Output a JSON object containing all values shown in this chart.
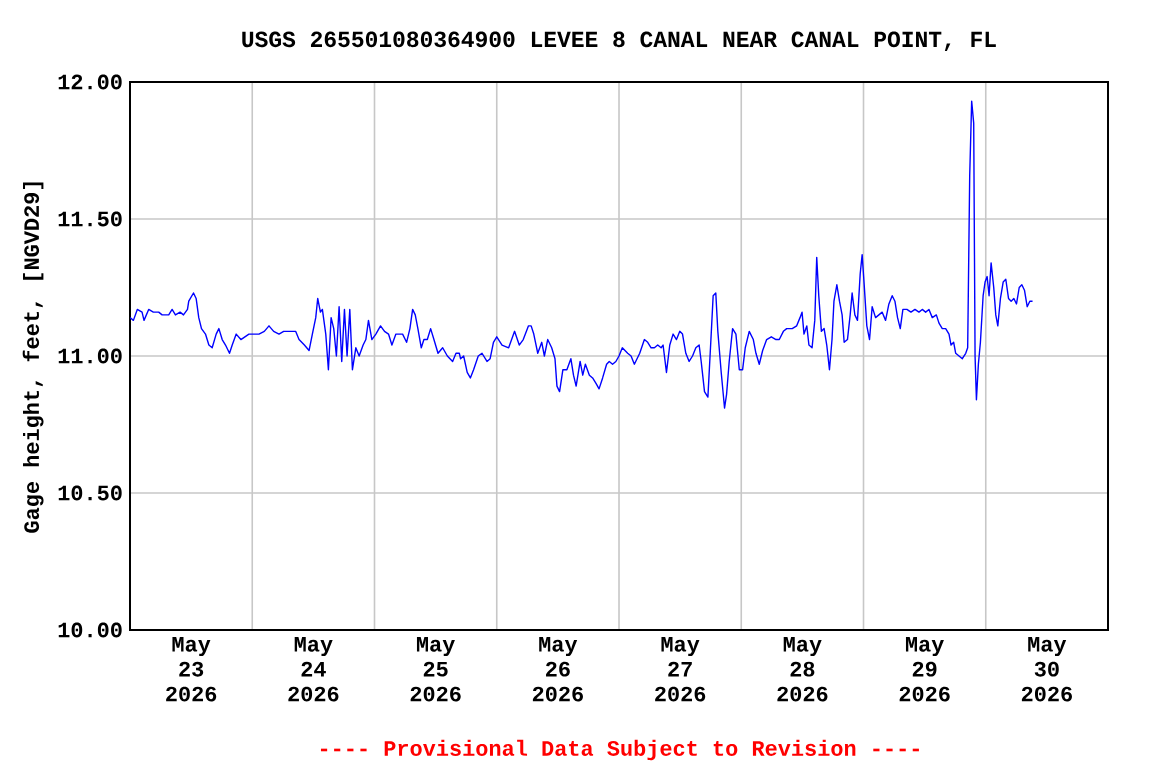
{
  "chart_data": {
    "type": "line",
    "title": "USGS 265501080364900 LEVEE 8 CANAL NEAR CANAL POINT, FL",
    "ylabel": "Gage height, feet, [NGVD29]",
    "annotations": [
      "---- Provisional Data Subject to Revision ----"
    ],
    "color": "#0000ff",
    "grid": true,
    "xlim": [
      "2026-05-23",
      "2026-05-31"
    ],
    "ylim": [
      10,
      12
    ],
    "yticks": [
      {
        "value": 10,
        "label": "10.00"
      },
      {
        "value": 10.5,
        "label": "10.50"
      },
      {
        "value": 11,
        "label": "11.00"
      },
      {
        "value": 11.5,
        "label": "11.50"
      },
      {
        "value": 12,
        "label": "12.00"
      }
    ],
    "xticks": [
      {
        "value": "2026-05-24",
        "label": null
      },
      {
        "value": "2026-05-25",
        "label": null
      },
      {
        "value": "2026-05-26",
        "label": null
      },
      {
        "value": "2026-05-27",
        "label": null
      },
      {
        "value": "2026-05-28",
        "label": null
      },
      {
        "value": "2026-05-29",
        "label": null
      },
      {
        "value": "2026-05-30",
        "label": null
      },
      {
        "value": "2026-05-23T12:00",
        "label": "May 23 2026"
      },
      {
        "value": "2026-05-24T12:00",
        "label": "May 24 2026"
      },
      {
        "value": "2026-05-25T12:00",
        "label": "May 25 2026"
      },
      {
        "value": "2026-05-26T12:00",
        "label": "May 26 2026"
      },
      {
        "value": "2026-05-27T12:00",
        "label": "May 27 2026"
      },
      {
        "value": "2026-05-28T12:00",
        "label": "May 28 2026"
      },
      {
        "value": "2026-05-29T12:00",
        "label": "May 29 2026"
      },
      {
        "value": "2026-05-30T12:00",
        "label": "May 30 2026"
      }
    ],
    "x": [
      "2026-05-23T00:00",
      "2026-05-23T00:40",
      "2026-05-23T01:26",
      "2026-05-23T02:22",
      "2026-05-23T02:45",
      "2026-05-23T03:40",
      "2026-05-23T04:35",
      "2026-05-23T05:38",
      "2026-05-23T06:18",
      "2026-05-23T07:36",
      "2026-05-23T08:16",
      "2026-05-23T08:55",
      "2026-05-23T09:50",
      "2026-05-23T10:30",
      "2026-05-23T11:17",
      "2026-05-23T11:32",
      "2026-05-23T12:28",
      "2026-05-23T12:59",
      "2026-05-23T13:30",
      "2026-05-23T14:02",
      "2026-05-23T14:49",
      "2026-05-23T15:29",
      "2026-05-23T16:08",
      "2026-05-23T16:55",
      "2026-05-23T17:27",
      "2026-05-23T18:06",
      "2026-05-23T18:45",
      "2026-05-23T19:32",
      "2026-05-23T20:04",
      "2026-05-23T20:51",
      "2026-05-23T21:46",
      "2026-05-23T23:21",
      "2026-05-24T01:19",
      "2026-05-24T02:22",
      "2026-05-24T03:17",
      "2026-05-24T04:12",
      "2026-05-24T05:15",
      "2026-05-24T06:10",
      "2026-05-24T07:52",
      "2026-05-24T08:31",
      "2026-05-24T09:11",
      "2026-05-24T10:14",
      "2026-05-24T11:09",
      "2026-05-24T11:48",
      "2026-05-24T12:28",
      "2026-05-24T12:51",
      "2026-05-24T13:23",
      "2026-05-24T13:46",
      "2026-05-24T14:26",
      "2026-05-24T14:57",
      "2026-05-24T15:29",
      "2026-05-24T16:00",
      "2026-05-24T16:31",
      "2026-05-24T17:03",
      "2026-05-24T17:34",
      "2026-05-24T18:06",
      "2026-05-24T18:37",
      "2026-05-24T19:09",
      "2026-05-24T19:40",
      "2026-05-24T20:20",
      "2026-05-24T20:59",
      "2026-05-24T21:46",
      "2026-05-24T22:18",
      "2026-05-24T22:49",
      "2026-05-24T23:29",
      "2026-05-25T00:16",
      "2026-05-25T01:11",
      "2026-05-25T01:58",
      "2026-05-25T02:45",
      "2026-05-25T03:25",
      "2026-05-25T04:12",
      "2026-05-25T05:31",
      "2026-05-25T06:18",
      "2026-05-25T06:57",
      "2026-05-25T07:29",
      "2026-05-25T08:00",
      "2026-05-25T08:31",
      "2026-05-25T09:11",
      "2026-05-25T09:42",
      "2026-05-25T10:22",
      "2026-05-25T11:01",
      "2026-05-25T11:40",
      "2026-05-25T12:28",
      "2026-05-25T13:23",
      "2026-05-25T14:18",
      "2026-05-25T15:20",
      "2026-05-25T16:00",
      "2026-05-25T16:39",
      "2026-05-25T16:54",
      "2026-05-25T17:30",
      "2026-05-25T18:12",
      "2026-05-25T18:49",
      "2026-05-25T19:27",
      "2026-05-25T20:22",
      "2026-05-25T21:06",
      "2026-05-25T22:05",
      "2026-05-25T22:42",
      "2026-05-25T23:21",
      "2026-05-26T00:00",
      "2026-05-26T01:02",
      "2026-05-26T02:20",
      "2026-05-26T03:30",
      "2026-05-26T04:25",
      "2026-05-26T05:12",
      "2026-05-26T06:14",
      "2026-05-26T06:45",
      "2026-05-26T07:16",
      "2026-05-26T08:03",
      "2026-05-26T08:50",
      "2026-05-26T09:21",
      "2026-05-26T10:00",
      "2026-05-26T10:47",
      "2026-05-26T11:26",
      "2026-05-26T11:49",
      "2026-05-26T12:20",
      "2026-05-26T12:59",
      "2026-05-26T13:46",
      "2026-05-26T14:33",
      "2026-05-26T15:04",
      "2026-05-26T15:35",
      "2026-05-26T16:22",
      "2026-05-26T16:53",
      "2026-05-26T17:24",
      "2026-05-26T18:11",
      "2026-05-26T18:49",
      "2026-05-26T19:29",
      "2026-05-26T20:05",
      "2026-05-26T20:47",
      "2026-05-26T21:34",
      "2026-05-26T22:05",
      "2026-05-26T22:44",
      "2026-05-26T23:23",
      "2026-05-27T00:00",
      "2026-05-27T00:39",
      "2026-05-27T01:42",
      "2026-05-27T02:22",
      "2026-05-27T03:01",
      "2026-05-27T04:04",
      "2026-05-27T04:59",
      "2026-05-27T05:38",
      "2026-05-27T06:18",
      "2026-05-27T06:57",
      "2026-05-27T07:36",
      "2026-05-27T08:16",
      "2026-05-27T08:39",
      "2026-05-27T09:19",
      "2026-05-27T09:58",
      "2026-05-27T10:37",
      "2026-05-27T11:17",
      "2026-05-27T11:56",
      "2026-05-27T12:28",
      "2026-05-27T13:07",
      "2026-05-27T13:46",
      "2026-05-27T14:26",
      "2026-05-27T15:05",
      "2026-05-27T15:44",
      "2026-05-27T16:08",
      "2026-05-27T16:47",
      "2026-05-27T17:27",
      "2026-05-27T18:06",
      "2026-05-27T18:29",
      "2026-05-27T19:00",
      "2026-05-27T19:24",
      "2026-05-27T20:04",
      "2026-05-27T20:43",
      "2026-05-27T21:07",
      "2026-05-27T21:38",
      "2026-05-27T22:18",
      "2026-05-27T22:57",
      "2026-05-27T23:37",
      "2026-05-28T00:16",
      "2026-05-28T00:47",
      "2026-05-28T01:34",
      "2026-05-28T02:22",
      "2026-05-28T02:53",
      "2026-05-28T03:32",
      "2026-05-28T04:12",
      "2026-05-28T04:59",
      "2026-05-28T05:54",
      "2026-05-28T06:49",
      "2026-05-28T07:28",
      "2026-05-28T08:16",
      "2026-05-28T08:55",
      "2026-05-28T10:00",
      "2026-05-28T10:53",
      "2026-05-28T11:32",
      "2026-05-28T11:56",
      "2026-05-28T12:19",
      "2026-05-28T12:52",
      "2026-05-28T13:17",
      "2026-05-28T13:54",
      "2026-05-28T14:26",
      "2026-05-28T14:49",
      "2026-05-28T15:13",
      "2026-05-28T15:44",
      "2026-05-28T16:16",
      "2026-05-28T16:47",
      "2026-05-28T17:19",
      "2026-05-28T17:49",
      "2026-05-28T18:12",
      "2026-05-28T18:46",
      "2026-05-28T19:17",
      "2026-05-28T19:48",
      "2026-05-28T20:12",
      "2026-05-28T20:51",
      "2026-05-28T21:23",
      "2026-05-28T21:46",
      "2026-05-28T22:18",
      "2026-05-28T22:49",
      "2026-05-28T23:21",
      "2026-05-28T23:44",
      "2026-05-29T00:08",
      "2026-05-29T00:39",
      "2026-05-29T01:11",
      "2026-05-29T01:42",
      "2026-05-29T02:22",
      "2026-05-29T03:01",
      "2026-05-29T03:40",
      "2026-05-29T04:20",
      "2026-05-29T04:59",
      "2026-05-29T05:38",
      "2026-05-29T06:10",
      "2026-05-29T06:41",
      "2026-05-29T07:13",
      "2026-05-29T07:44",
      "2026-05-29T08:31",
      "2026-05-29T09:19",
      "2026-05-29T10:06",
      "2026-05-29T10:53",
      "2026-05-29T11:32",
      "2026-05-29T12:12",
      "2026-05-29T12:51",
      "2026-05-29T13:30",
      "2026-05-29T14:18",
      "2026-05-29T14:49",
      "2026-05-29T15:28",
      "2026-05-29T16:08",
      "2026-05-29T16:47",
      "2026-05-29T17:11",
      "2026-05-29T17:42",
      "2026-05-29T18:06",
      "2026-05-29T18:45",
      "2026-05-29T19:24",
      "2026-05-29T20:04",
      "2026-05-29T20:27",
      "2026-05-29T20:51",
      "2026-05-29T21:14",
      "2026-05-29T21:38",
      "2026-05-29T21:54",
      "2026-05-29T22:10",
      "2026-05-29T22:33",
      "2026-05-29T22:57",
      "2026-05-29T23:29",
      "2026-05-29T23:52",
      "2026-05-30T00:16",
      "2026-05-30T00:39",
      "2026-05-30T01:03",
      "2026-05-30T01:34",
      "2026-05-30T01:58",
      "2026-05-30T02:22",
      "2026-05-30T02:53",
      "2026-05-30T03:25",
      "2026-05-30T03:56",
      "2026-05-30T04:28",
      "2026-05-30T04:59",
      "2026-05-30T05:31",
      "2026-05-30T06:02",
      "2026-05-30T06:34",
      "2026-05-30T07:05",
      "2026-05-30T07:36",
      "2026-05-30T08:08",
      "2026-05-30T08:39",
      "2026-05-30T09:11"
    ],
    "values": [
      11.14,
      11.13,
      11.17,
      11.16,
      11.13,
      11.17,
      11.16,
      11.16,
      11.15,
      11.15,
      11.17,
      11.15,
      11.16,
      11.15,
      11.17,
      11.2,
      11.23,
      11.21,
      11.14,
      11.1,
      11.08,
      11.04,
      11.03,
      11.08,
      11.1,
      11.06,
      11.04,
      11.01,
      11.04,
      11.08,
      11.06,
      11.08,
      11.08,
      11.09,
      11.11,
      11.09,
      11.08,
      11.09,
      11.09,
      11.09,
      11.06,
      11.04,
      11.02,
      11.08,
      11.14,
      11.21,
      11.16,
      11.17,
      11.08,
      10.95,
      11.14,
      11.1,
      11.0,
      11.18,
      10.98,
      11.17,
      11.0,
      11.17,
      10.95,
      11.03,
      11.0,
      11.04,
      11.06,
      11.13,
      11.06,
      11.08,
      11.11,
      11.09,
      11.08,
      11.04,
      11.08,
      11.08,
      11.05,
      11.1,
      11.17,
      11.15,
      11.1,
      11.03,
      11.06,
      11.06,
      11.1,
      11.06,
      11.01,
      11.03,
      11.0,
      10.98,
      11.01,
      11.01,
      10.99,
      11.0,
      10.94,
      10.92,
      10.95,
      11.0,
      11.01,
      10.98,
      10.99,
      11.05,
      11.07,
      11.04,
      11.03,
      11.09,
      11.04,
      11.06,
      11.11,
      11.11,
      11.08,
      11.01,
      11.05,
      11.0,
      11.06,
      11.03,
      10.99,
      10.89,
      10.87,
      10.95,
      10.95,
      10.99,
      10.93,
      10.89,
      10.98,
      10.93,
      10.97,
      10.93,
      10.92,
      10.9,
      10.88,
      10.92,
      10.97,
      10.98,
      10.97,
      10.98,
      11.0,
      11.03,
      11.01,
      11.0,
      10.97,
      11.01,
      11.06,
      11.05,
      11.03,
      11.03,
      11.04,
      11.03,
      11.04,
      10.94,
      11.04,
      11.08,
      11.06,
      11.09,
      11.08,
      11.01,
      10.98,
      11.0,
      11.03,
      11.04,
      10.98,
      10.87,
      10.85,
      11.08,
      11.22,
      11.23,
      11.09,
      10.94,
      10.81,
      10.86,
      10.98,
      11.1,
      11.08,
      10.95,
      10.95,
      11.03,
      11.09,
      11.06,
      11.01,
      10.97,
      11.02,
      11.06,
      11.07,
      11.06,
      11.06,
      11.09,
      11.1,
      11.1,
      11.11,
      11.14,
      11.16,
      11.08,
      11.11,
      11.04,
      11.03,
      11.13,
      11.36,
      11.22,
      11.09,
      11.1,
      11.04,
      10.95,
      11.06,
      11.2,
      11.26,
      11.2,
      11.15,
      11.05,
      11.06,
      11.15,
      11.23,
      11.15,
      11.13,
      11.3,
      11.37,
      11.26,
      11.11,
      11.06,
      11.18,
      11.14,
      11.15,
      11.16,
      11.13,
      11.19,
      11.22,
      11.2,
      11.14,
      11.1,
      11.17,
      11.17,
      11.16,
      11.17,
      11.16,
      11.17,
      11.16,
      11.17,
      11.14,
      11.15,
      11.12,
      11.1,
      11.1,
      11.08,
      11.04,
      11.05,
      11.01,
      11.0,
      10.99,
      11.01,
      11.03,
      11.66,
      11.93,
      11.85,
      11.0,
      10.84,
      10.97,
      11.05,
      11.22,
      11.27,
      11.29,
      11.22,
      11.34,
      11.25,
      11.15,
      11.11,
      11.21,
      11.27,
      11.28,
      11.21,
      11.2,
      11.21,
      11.19,
      11.25,
      11.26,
      11.24,
      11.18,
      11.2,
      11.2
    ]
  }
}
